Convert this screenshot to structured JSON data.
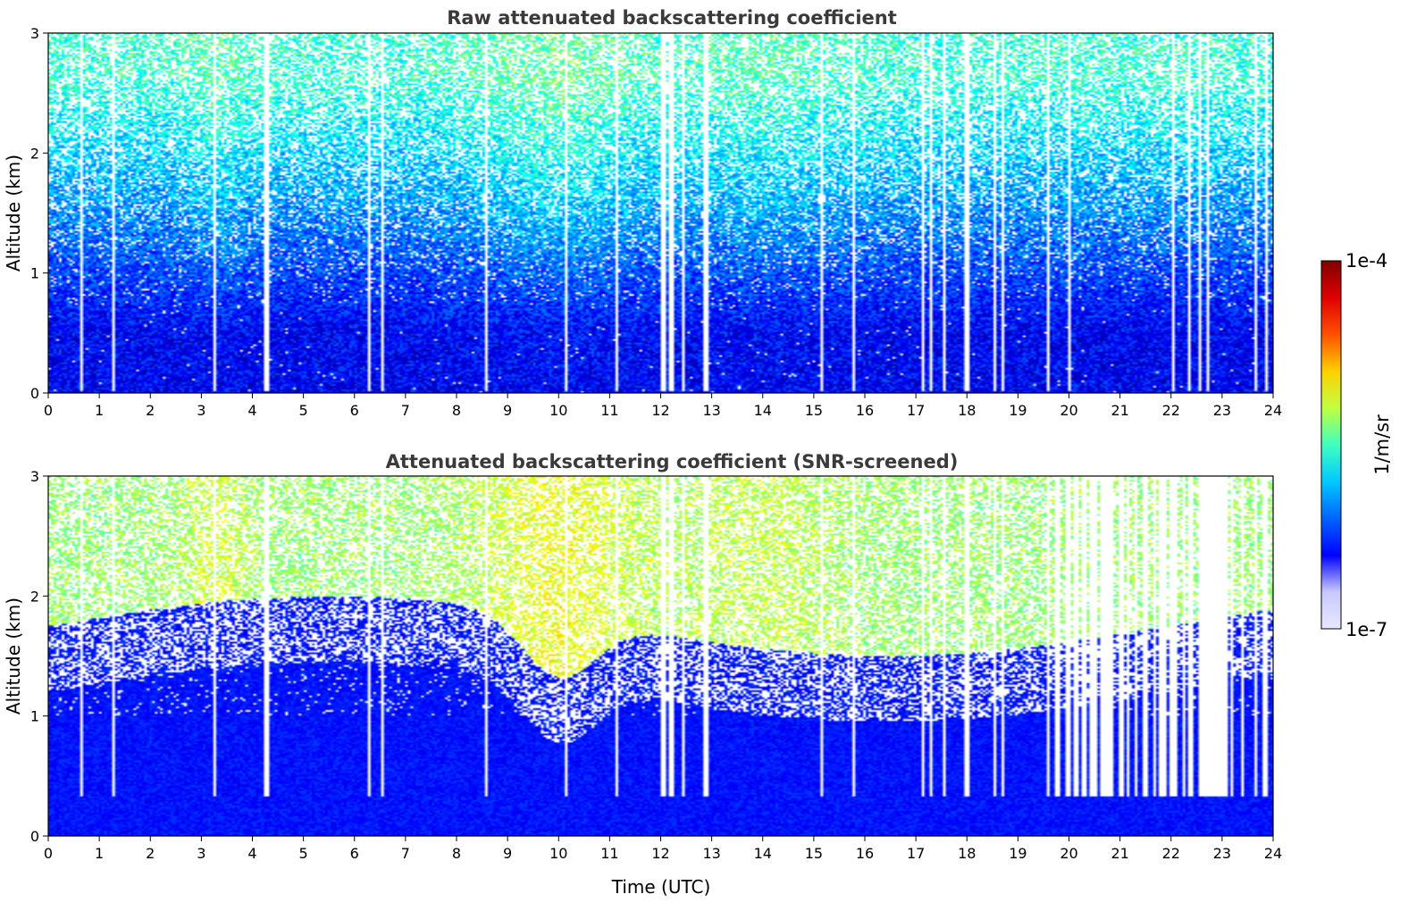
{
  "chart_data": [
    {
      "type": "heatmap",
      "title": "Raw attenuated backscattering coefficient",
      "xlabel": "",
      "ylabel": "Altitude (km)",
      "xlim": [
        0,
        24
      ],
      "ylim": [
        0,
        3
      ],
      "x_ticks": [
        "0",
        "1",
        "2",
        "3",
        "4",
        "5",
        "6",
        "7",
        "8",
        "9",
        "10",
        "11",
        "12",
        "13",
        "14",
        "15",
        "16",
        "17",
        "18",
        "19",
        "20",
        "21",
        "22",
        "23",
        "24"
      ],
      "y_ticks": [
        "0",
        "1",
        "2",
        "3"
      ],
      "gap_times_utc": [
        0.65,
        1.25,
        3.25,
        4.25,
        4.3,
        6.3,
        6.55,
        8.6,
        10.15,
        11.15,
        12.05,
        12.1,
        12.2,
        12.25,
        12.45,
        12.85,
        12.9,
        15.15,
        15.8,
        17.15,
        17.3,
        17.55,
        18.0,
        18.05,
        18.55,
        18.7,
        19.6,
        20.0,
        20.05,
        22.05,
        22.4,
        22.6,
        22.75,
        23.7,
        23.9
      ]
    },
    {
      "type": "heatmap",
      "title": "Attenuated backscattering coefficient (SNR-screened)",
      "xlabel": "Time (UTC)",
      "ylabel": "Altitude (km)",
      "xlim": [
        0,
        24
      ],
      "ylim": [
        0,
        3
      ],
      "x_ticks": [
        "0",
        "1",
        "2",
        "3",
        "4",
        "5",
        "6",
        "7",
        "8",
        "9",
        "10",
        "11",
        "12",
        "13",
        "14",
        "15",
        "16",
        "17",
        "18",
        "19",
        "20",
        "21",
        "22",
        "23",
        "24"
      ],
      "y_ticks": [
        "0",
        "1",
        "2",
        "3"
      ],
      "gap_times_utc": [
        0.65,
        1.25,
        3.25,
        4.25,
        4.3,
        6.3,
        6.55,
        8.6,
        10.15,
        11.15,
        12.05,
        12.1,
        12.2,
        12.25,
        12.45,
        12.85,
        12.9,
        15.15,
        15.8,
        17.15,
        17.3,
        17.55,
        18.0,
        18.05,
        18.55,
        18.7,
        19.6,
        20.0,
        20.05,
        22.05,
        22.4,
        22.6,
        22.75,
        23.7,
        23.9
      ]
    }
  ],
  "colorbar": {
    "colormap": "jet",
    "scale": "log",
    "min_label": "1e-7",
    "max_label": "1e-4",
    "label": "1/m/sr",
    "colors": [
      "#e8e8ff",
      "#c8c8ff",
      "#0000ff",
      "#0064ff",
      "#00c8ff",
      "#40ffc0",
      "#c0ff40",
      "#ffd000",
      "#ff5000",
      "#e00000",
      "#800000"
    ]
  }
}
